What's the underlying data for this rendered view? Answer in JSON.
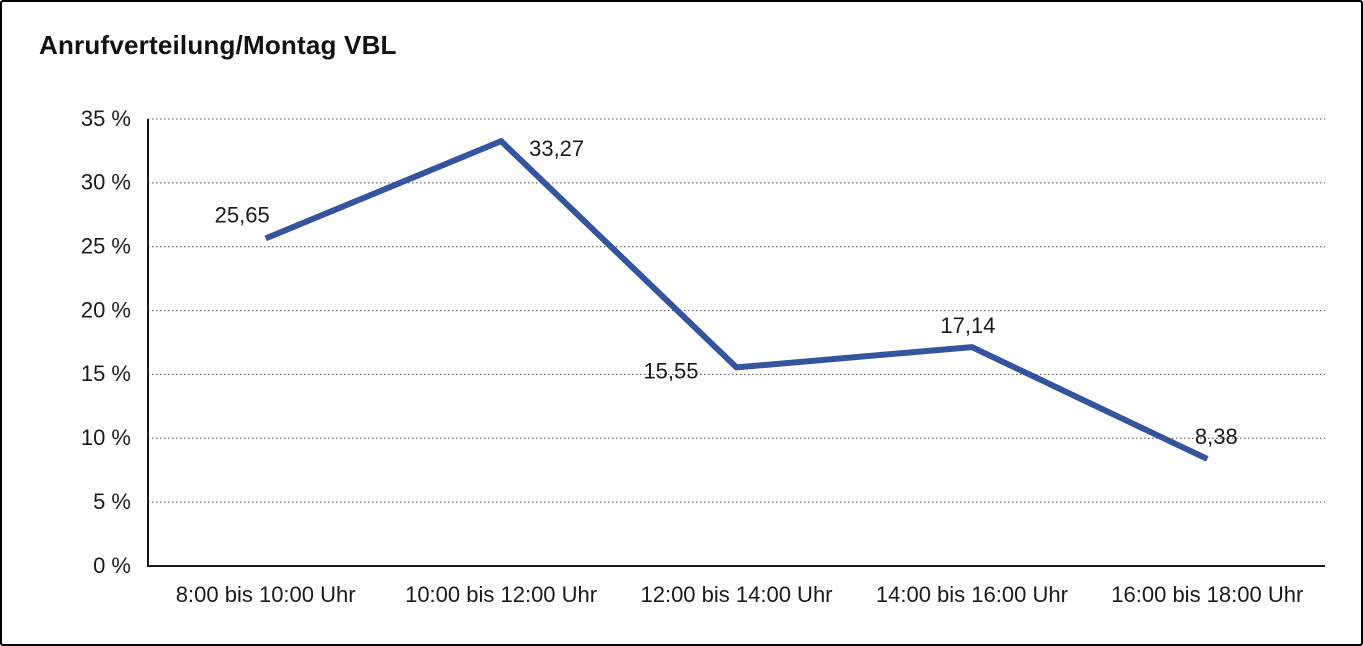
{
  "title": "Anrufverteilung/Montag VBL",
  "colors": {
    "line": "#35549E",
    "axis": "#1a1a1a",
    "grid": "#4a4a4a",
    "text": "#1a1a1a",
    "background": "#ffffff",
    "border": "#000000"
  },
  "chart_data": {
    "type": "line",
    "title": "Anrufverteilung/Montag VBL",
    "categories": [
      "8:00 bis 10:00 Uhr",
      "10:00 bis 12:00 Uhr",
      "12:00 bis 14:00 Uhr",
      "14:00 bis 16:00 Uhr",
      "16:00 bis 18:00 Uhr"
    ],
    "values": [
      25.65,
      33.27,
      15.55,
      17.14,
      8.38
    ],
    "value_labels": [
      "25,65",
      "33,27",
      "15,55",
      "17,14",
      "8,38"
    ],
    "xlabel": "",
    "ylabel": "",
    "ylim": [
      0,
      35
    ],
    "ytick_step": 5,
    "ytick_labels": [
      "0 %",
      "5 %",
      "10 %",
      "15 %",
      "20 %",
      "25 %",
      "30 %",
      "35 %"
    ],
    "grid": "horizontal-dotted",
    "legend": "none"
  }
}
